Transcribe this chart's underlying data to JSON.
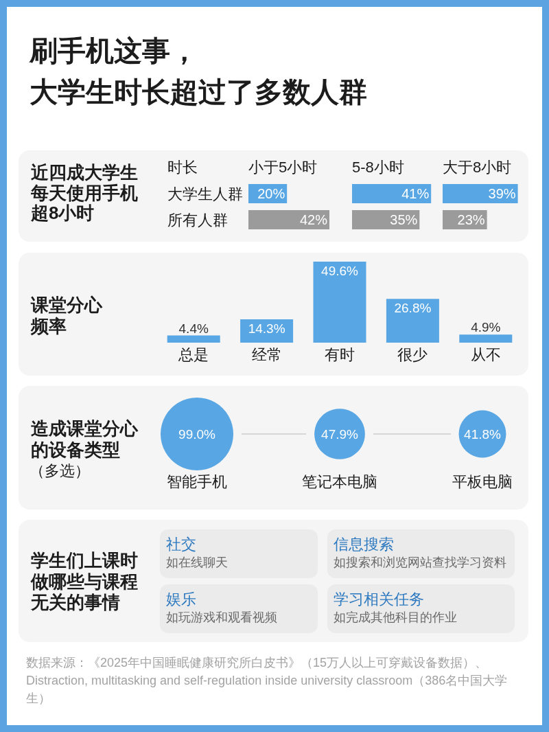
{
  "chart_data": [
    {
      "type": "bar",
      "orientation": "horizontal",
      "title": "刷手机这事，大学生时长超过了多数人群",
      "subtitle": "近四成大学生每天使用手机超8小时",
      "ylabel": "时长",
      "xlabel": "小于5小时",
      "categories": [
        "大学生人群",
        "所有人群"
      ],
      "values": [
        20,
        42
      ],
      "colors": [
        "#58a6e3",
        "#9b9b9b"
      ],
      "value_labels": [
        "20%",
        "42%"
      ],
      "tick_labels": "y"
    },
    {
      "type": "bar",
      "orientation": "horizontal",
      "xlabel": "5-8小时",
      "categories": [
        null,
        null
      ],
      "values": [
        41,
        35
      ],
      "colors": [
        "#58a6e3",
        "#9b9b9b"
      ],
      "value_labels": [
        "41%",
        "35%"
      ],
      "tick_labels": false
    },
    {
      "type": "bar",
      "orientation": "horizontal",
      "xlabel": "大于8小时",
      "categories": [
        null,
        null
      ],
      "values": [
        39,
        23
      ],
      "colors": [
        "#58a6e3",
        "#9b9b9b"
      ],
      "value_labels": [
        "39%",
        "23%"
      ],
      "tick_labels": false
    },
    {
      "type": "bar",
      "title": "课堂分心频率",
      "categories": [
        "总是",
        "经常",
        "有时",
        "很少",
        "从不"
      ],
      "values": [
        4.4,
        14.3,
        49.6,
        26.8,
        4.9
      ],
      "value_labels": [
        "4.4%",
        "14.3%",
        "49.6%",
        "26.8%",
        "4.9%"
      ],
      "color": "#58a6e3"
    },
    {
      "type": "other",
      "title": "造成课堂分心的设备类型",
      "subtitle": "（多选）",
      "categories": [
        "智能手机",
        "笔记本电脑",
        "平板电脑"
      ],
      "values": [
        99.0,
        47.9,
        41.8
      ],
      "value_labels": [
        "99.0%",
        "47.9%",
        "41.8%"
      ],
      "color": "#58a6e3"
    },
    {
      "type": "other",
      "title": "学生们上课时做哪些与课程无关的事情",
      "annotations": [
        "社交",
        "如在线聊天",
        "信息搜索",
        "如搜索和浏览网站查找学习资料",
        "娱乐",
        "如玩游戏和观看视频",
        "学习相关任务",
        "如完成其他科目的作业",
        "数据来源：《2025年中国睡眠健康研究所白皮书》（15万人以上可穿戴设备数据）、Distraction, multitasking and self-regulation inside university classroom（386名中国大学生）"
      ]
    }
  ]
}
